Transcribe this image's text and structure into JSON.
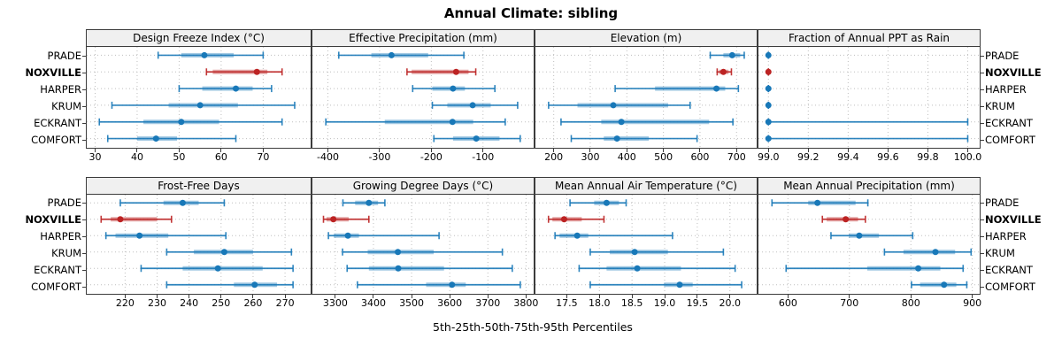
{
  "title": "Annual Climate: sibling",
  "caption": "5th-25th-50th-75th-95th Percentiles",
  "locations": [
    {
      "name": "PRADE",
      "highlight": false
    },
    {
      "name": "NOXVILLE",
      "highlight": true
    },
    {
      "name": "HARPER",
      "highlight": false
    },
    {
      "name": "KRUM",
      "highlight": false
    },
    {
      "name": "ECKRANT",
      "highlight": false
    },
    {
      "name": "COMFORT",
      "highlight": false
    }
  ],
  "colors": {
    "series_normal": "#1878b8",
    "series_highlight": "#bc2323",
    "band_opacity": 0.4,
    "gridline": "#bfbfbf",
    "panel_border": "#3c3c3c",
    "strip_background": "#f0f0f0"
  },
  "chart_data": {
    "type": "dotplot-percentiles",
    "percentiles": [
      5,
      25,
      50,
      75,
      95
    ],
    "panels": [
      {
        "title": "Design Freeze Index (°C)",
        "grid_row": 0,
        "grid_col": 0,
        "xlim": [
          28,
          81.3
        ],
        "tick_values": [
          30,
          40,
          50,
          60,
          70
        ],
        "tick_labels": [
          "30",
          "40",
          "50",
          "60",
          "70"
        ],
        "series": [
          [
            45,
            50.5,
            56,
            63,
            70
          ],
          [
            56.5,
            58,
            68.5,
            71,
            74.5
          ],
          [
            50,
            55.5,
            63.5,
            67.5,
            72
          ],
          [
            34,
            47.5,
            55,
            64,
            77.5
          ],
          [
            31,
            41.5,
            50.5,
            59.5,
            74.5
          ],
          [
            33,
            40,
            44.5,
            49.5,
            63.5
          ]
        ]
      },
      {
        "title": "Effective Precipitation (mm)",
        "grid_row": 0,
        "grid_col": 1,
        "xlim": [
          -430,
          -2
        ],
        "tick_values": [
          -400,
          -300,
          -200,
          -100
        ],
        "tick_labels": [
          "-400",
          "-300",
          "-200",
          "-100"
        ],
        "series": [
          [
            -379,
            -316,
            -277,
            -206,
            -137
          ],
          [
            -247,
            -238,
            -152,
            -128,
            -114
          ],
          [
            -236,
            -198,
            -158,
            -135,
            -77
          ],
          [
            -198,
            -169,
            -120,
            -85,
            -33
          ],
          [
            -404,
            -290,
            -159,
            -119,
            -57
          ],
          [
            -195,
            -158,
            -113,
            -68,
            -28
          ]
        ]
      },
      {
        "title": "Elevation (m)",
        "grid_row": 0,
        "grid_col": 2,
        "xlim": [
          150,
          755
        ],
        "tick_values": [
          200,
          300,
          400,
          500,
          600,
          700
        ],
        "tick_labels": [
          "200",
          "300",
          "400",
          "500",
          "600",
          "700"
        ],
        "series": [
          [
            628,
            664,
            688,
            710,
            721
          ],
          [
            647,
            652,
            664,
            678,
            686
          ],
          [
            368,
            477,
            645,
            669,
            705
          ],
          [
            186,
            265,
            363,
            513,
            573
          ],
          [
            220,
            330,
            385,
            625,
            690
          ],
          [
            248,
            337,
            373,
            460,
            592
          ]
        ]
      },
      {
        "title": "Fraction of Annual PPT as Rain",
        "grid_row": 0,
        "grid_col": 3,
        "xlim": [
          98.95,
          100.06
        ],
        "tick_values": [
          99.0,
          99.2,
          99.4,
          99.6,
          99.8,
          100.0
        ],
        "tick_labels": [
          "99.0",
          "99.2",
          "99.4",
          "99.6",
          "99.8",
          "100.0"
        ],
        "series": [
          [
            99,
            99,
            99,
            99,
            99
          ],
          [
            99,
            99,
            99,
            99,
            99
          ],
          [
            99,
            99,
            99,
            99,
            99
          ],
          [
            99,
            99,
            99,
            99,
            99
          ],
          [
            99,
            99,
            99,
            99,
            100
          ],
          [
            99,
            99,
            99,
            99,
            100
          ]
        ]
      },
      {
        "title": "Frost-Free Days",
        "grid_row": 1,
        "grid_col": 0,
        "xlim": [
          208,
          278
        ],
        "tick_values": [
          220,
          230,
          240,
          250,
          260,
          270
        ],
        "tick_labels": [
          "220",
          "230",
          "240",
          "250",
          "260",
          "270"
        ],
        "series": [
          [
            218.5,
            232,
            238,
            243,
            251
          ],
          [
            212.5,
            215.5,
            218.5,
            230,
            234.5
          ],
          [
            214,
            217,
            224.5,
            233.5,
            251.5
          ],
          [
            233,
            241.5,
            251,
            260,
            272
          ],
          [
            225,
            238,
            249,
            263,
            272.5
          ],
          [
            233,
            254,
            260.5,
            267.5,
            272.5
          ]
        ]
      },
      {
        "title": "Growing Degree Days (°C)",
        "grid_row": 1,
        "grid_col": 1,
        "xlim": [
          3240,
          3820
        ],
        "tick_values": [
          3300,
          3400,
          3500,
          3600,
          3700,
          3800
        ],
        "tick_labels": [
          "3300",
          "3400",
          "3500",
          "3600",
          "3700",
          "3800"
        ],
        "series": [
          [
            3320,
            3352,
            3388,
            3412,
            3430
          ],
          [
            3269,
            3277,
            3295,
            3335,
            3388
          ],
          [
            3282,
            3296,
            3333,
            3362,
            3572
          ],
          [
            3319,
            3385,
            3464,
            3558,
            3738
          ],
          [
            3331,
            3388,
            3465,
            3585,
            3764
          ],
          [
            3358,
            3538,
            3606,
            3642,
            3785
          ]
        ]
      },
      {
        "title": "Mean Annual Air Temperature (°C)",
        "grid_row": 1,
        "grid_col": 2,
        "xlim": [
          17.02,
          20.41
        ],
        "tick_values": [
          17.5,
          18.0,
          18.5,
          19.0,
          19.5,
          20.0
        ],
        "tick_labels": [
          "17.5",
          "18.0",
          "18.5",
          "19.0",
          "19.5",
          "20.0"
        ],
        "series": [
          [
            17.55,
            17.92,
            18.11,
            18.3,
            18.41
          ],
          [
            17.22,
            17.28,
            17.46,
            17.73,
            18.07
          ],
          [
            17.32,
            17.39,
            17.66,
            17.83,
            19.12
          ],
          [
            17.86,
            18.16,
            18.54,
            19.05,
            19.9
          ],
          [
            17.69,
            18.11,
            18.58,
            19.25,
            20.08
          ],
          [
            17.86,
            18.99,
            19.23,
            19.43,
            20.18
          ]
        ]
      },
      {
        "title": "Mean Annual Precipitation (mm)",
        "grid_row": 1,
        "grid_col": 3,
        "xlim": [
          552,
          912
        ],
        "tick_values": [
          600,
          700,
          800,
          900
        ],
        "tick_labels": [
          "600",
          "700",
          "800",
          "900"
        ],
        "series": [
          [
            574,
            633,
            648,
            710,
            730
          ],
          [
            656,
            663,
            694,
            714,
            726
          ],
          [
            670,
            699,
            716,
            748,
            803
          ],
          [
            757,
            788,
            840,
            872,
            898
          ],
          [
            597,
            729,
            812,
            848,
            885
          ],
          [
            801,
            815,
            854,
            874,
            891
          ]
        ]
      }
    ]
  }
}
